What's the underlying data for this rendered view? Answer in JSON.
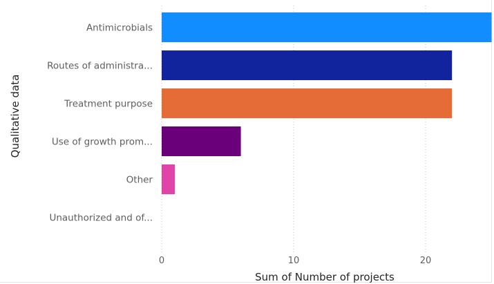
{
  "chart_data": {
    "type": "bar",
    "orientation": "horizontal",
    "categories": [
      "Antimicrobials",
      "Routes of administra...",
      "Treatment purpose",
      "Use of growth prom...",
      "Other",
      "Unauthorized and of..."
    ],
    "values": [
      25,
      22,
      22,
      6,
      1,
      0
    ],
    "colors": [
      "#118dff",
      "#12239e",
      "#e66c37",
      "#6b007b",
      "#e044a7",
      "#744ec2"
    ],
    "xlabel": "Sum of Number of projects",
    "ylabel": "Qualitative data",
    "xticks": [
      0,
      10,
      20
    ],
    "xlim": [
      0,
      25
    ],
    "grid": "vertical-dotted"
  }
}
